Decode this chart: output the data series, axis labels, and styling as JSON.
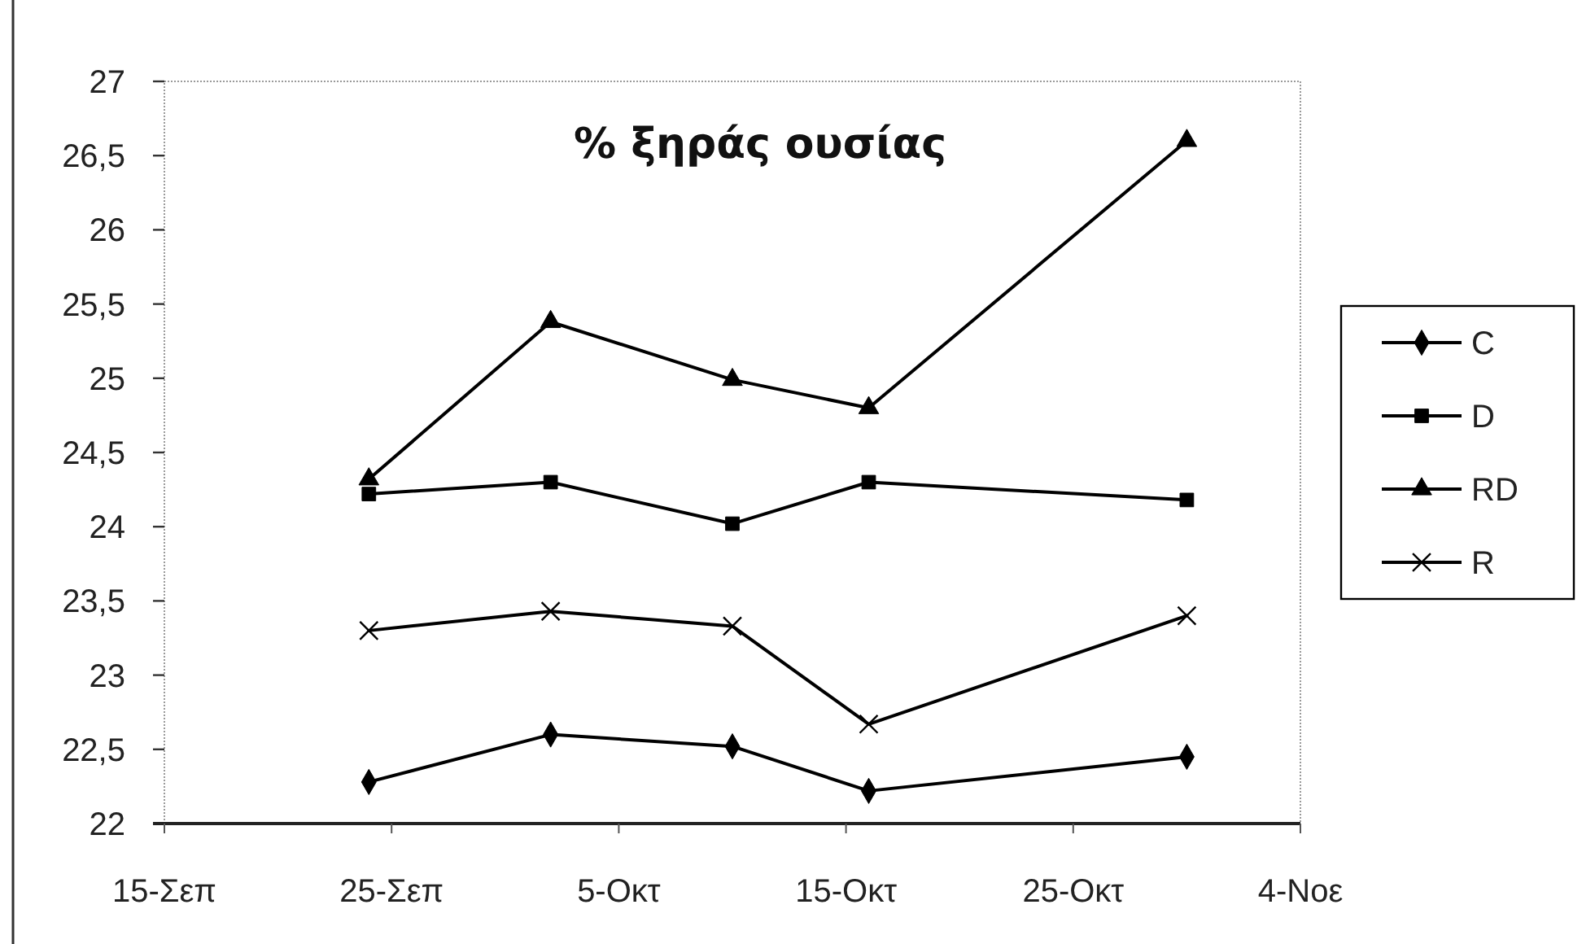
{
  "chart_data": {
    "type": "line",
    "title": "% ξηράς ουσίας",
    "x": [
      "--09-24",
      "--10-02",
      "--10-10",
      "--10-16",
      "--10-30"
    ],
    "series": [
      {
        "name": "C",
        "color": "#000000",
        "marker": "diamond",
        "values": [
          22.28,
          22.6,
          22.52,
          22.22,
          22.45
        ]
      },
      {
        "name": "D",
        "color": "#000000",
        "marker": "square",
        "values": [
          24.22,
          24.3,
          24.02,
          24.3,
          24.18
        ]
      },
      {
        "name": "RD",
        "color": "#000000",
        "marker": "triangle",
        "values": [
          24.32,
          25.38,
          24.99,
          24.8,
          26.6
        ]
      },
      {
        "name": "R",
        "color": "#000000",
        "marker": "cross",
        "values": [
          23.3,
          23.43,
          23.33,
          22.67,
          23.4
        ]
      }
    ],
    "xlim": [
      "--09-15",
      "--11-04"
    ],
    "xticks": [
      {
        "value": "--09-15",
        "label": "15-Σεπ"
      },
      {
        "value": "--09-25",
        "label": "25-Σεπ"
      },
      {
        "value": "--10-05",
        "label": "5-Οκτ"
      },
      {
        "value": "--10-15",
        "label": "15-Οκτ"
      },
      {
        "value": "--10-25",
        "label": "25-Οκτ"
      },
      {
        "value": "--11-04",
        "label": "4-Νοε"
      }
    ],
    "ylim": [
      22,
      27
    ],
    "yticks": [
      22,
      {
        "value": 22.5,
        "label": "22,5"
      },
      23,
      {
        "value": 23.5,
        "label": "23,5"
      },
      24,
      {
        "value": 24.5,
        "label": "24,5"
      },
      25,
      {
        "value": 25.5,
        "label": "25,5"
      },
      26,
      {
        "value": 26.5,
        "label": "26,5"
      },
      27
    ],
    "legend": "right",
    "line_style": "solid"
  }
}
